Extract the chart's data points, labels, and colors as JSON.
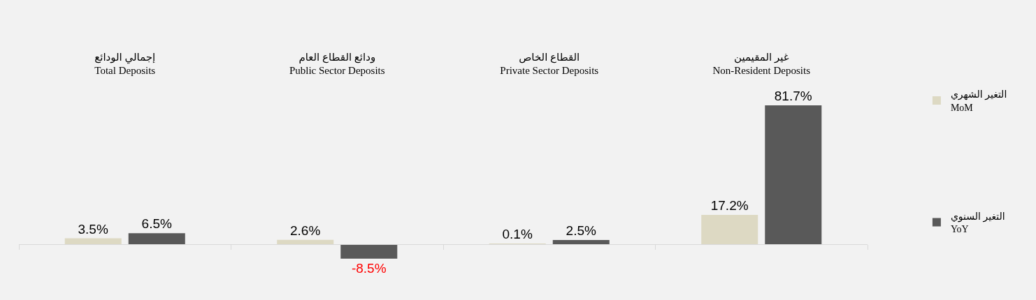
{
  "chart_data": {
    "type": "bar",
    "categories": [
      "إجمالي الودائع\nTotal Deposits",
      "ودائع القطاع العام\nPublic Sector Deposits",
      "القطاع الخاص\nPrivate Sector Deposits",
      "غير المقيمين\nNon-Resident Deposits"
    ],
    "series": [
      {
        "name": "التغير الشهري\nMoM",
        "color": "#ddd9c3",
        "values": [
          3.5,
          2.6,
          0.1,
          17.2
        ],
        "value_labels": [
          "3.5%",
          "2.6%",
          "0.1%",
          "17.2%"
        ]
      },
      {
        "name": "التغير السنوي\nYoY",
        "color": "#595959",
        "values": [
          6.5,
          -8.5,
          2.5,
          81.7
        ],
        "value_labels": [
          "6.5%",
          "-8.5%",
          "2.5%",
          "81.7%"
        ]
      }
    ],
    "legend": "right"
  }
}
